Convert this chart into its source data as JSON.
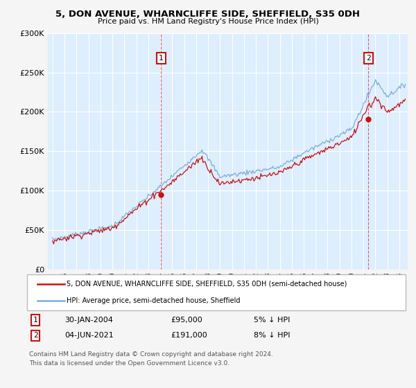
{
  "title": "5, DON AVENUE, WHARNCLIFFE SIDE, SHEFFIELD, S35 0DH",
  "subtitle": "Price paid vs. HM Land Registry's House Price Index (HPI)",
  "legend_line1": "5, DON AVENUE, WHARNCLIFFE SIDE, SHEFFIELD, S35 0DH (semi-detached house)",
  "legend_line2": "HPI: Average price, semi-detached house, Sheffield",
  "footer1": "Contains HM Land Registry data © Crown copyright and database right 2024.",
  "footer2": "This data is licensed under the Open Government Licence v3.0.",
  "annotation1_label": "1",
  "annotation1_date": "30-JAN-2004",
  "annotation1_price": "£95,000",
  "annotation1_hpi": "5% ↓ HPI",
  "annotation2_label": "2",
  "annotation2_date": "04-JUN-2021",
  "annotation2_price": "£191,000",
  "annotation2_hpi": "8% ↓ HPI",
  "sale1_x": 2004.08,
  "sale1_y": 95000,
  "sale2_x": 2021.42,
  "sale2_y": 191000,
  "hpi_color": "#7aafe0",
  "price_color": "#cc1111",
  "vline_color": "#dd4444",
  "background_color": "#f5f5f5",
  "plot_bg_color": "#ddeeff",
  "grid_color": "#ffffff",
  "ylim": [
    0,
    300000
  ],
  "xlim_start": 1994.6,
  "xlim_end": 2024.7,
  "yticks": [
    0,
    50000,
    100000,
    150000,
    200000,
    250000,
    300000
  ],
  "xticks": [
    1995,
    1996,
    1997,
    1998,
    1999,
    2000,
    2001,
    2002,
    2003,
    2004,
    2005,
    2006,
    2007,
    2008,
    2009,
    2010,
    2011,
    2012,
    2013,
    2014,
    2015,
    2016,
    2017,
    2018,
    2019,
    2020,
    2021,
    2022,
    2023,
    2024
  ]
}
